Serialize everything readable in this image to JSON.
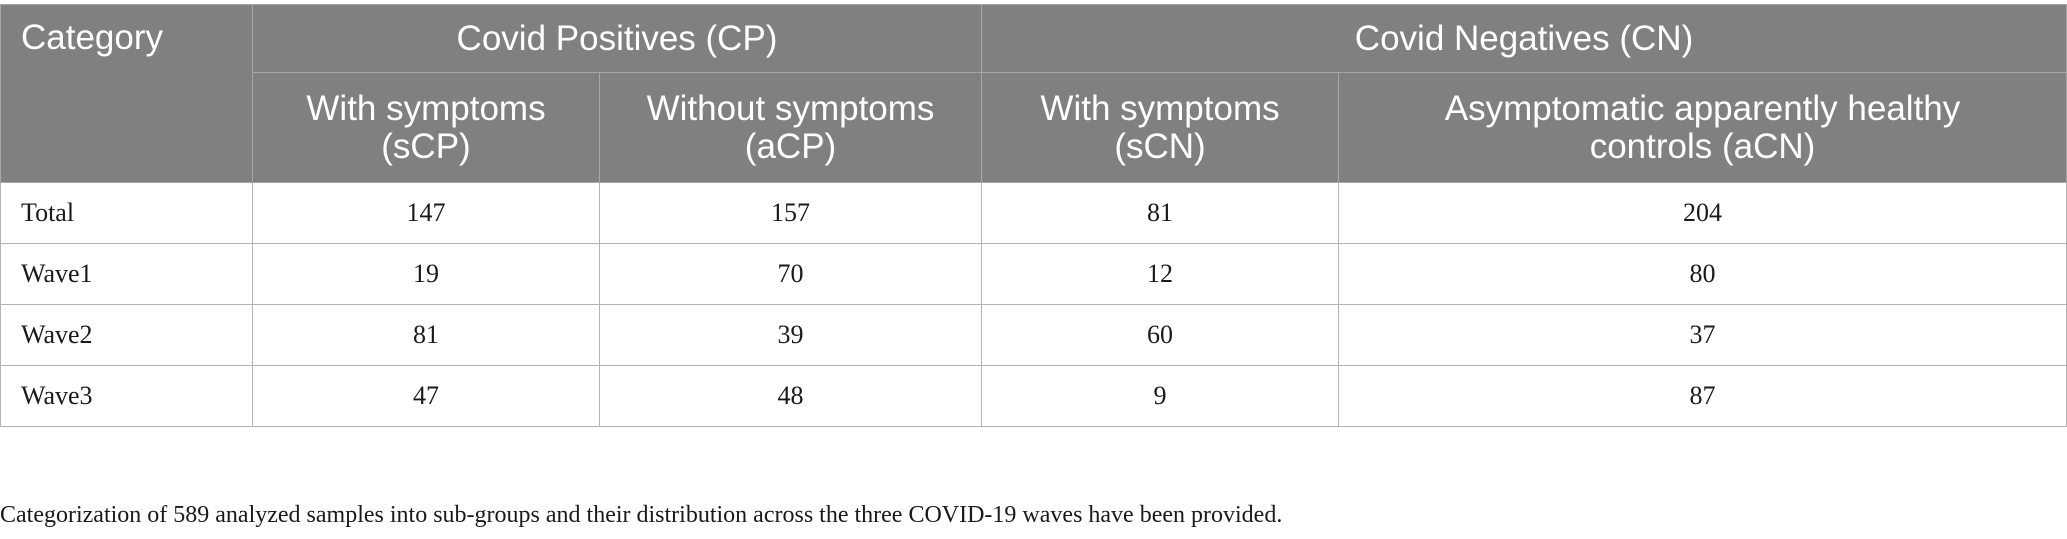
{
  "table": {
    "header_category": "Category",
    "group_cp": "Covid Positives (CP)",
    "group_cn": "Covid Negatives (CN)",
    "sub_headers": [
      {
        "line1": "With symptoms",
        "line2": "(sCP)"
      },
      {
        "line1": "Without symptoms",
        "line2": "(aCP)"
      },
      {
        "line1": "With symptoms",
        "line2": "(sCN)"
      },
      {
        "line1": "Asymptomatic apparently healthy",
        "line2": "controls (aCN)"
      }
    ],
    "rows": [
      {
        "label": "Total",
        "values": [
          "147",
          "157",
          "81",
          "204"
        ]
      },
      {
        "label": "Wave1",
        "values": [
          "19",
          "70",
          "12",
          "80"
        ]
      },
      {
        "label": "Wave2",
        "values": [
          "81",
          "39",
          "60",
          "37"
        ]
      },
      {
        "label": "Wave3",
        "values": [
          "47",
          "48",
          "9",
          "87"
        ]
      }
    ]
  },
  "caption": "Categorization of 589 analyzed samples into sub-groups and their distribution across the three COVID-19 waves have been provided."
}
